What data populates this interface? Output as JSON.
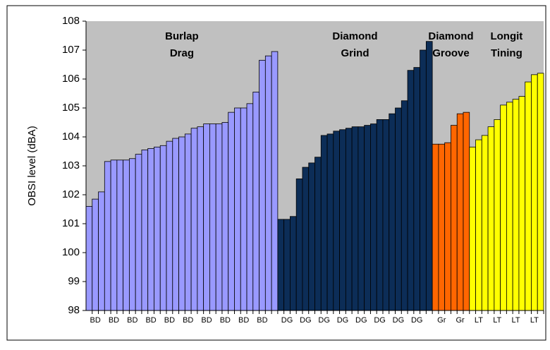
{
  "chart_data": {
    "type": "bar",
    "y_label": "OBSI level (dBA)",
    "ylim": [
      98,
      108
    ],
    "yticks": [
      98,
      99,
      100,
      101,
      102,
      103,
      104,
      105,
      106,
      107,
      108
    ],
    "categories": [
      null,
      "BD",
      null,
      null,
      "BD",
      null,
      null,
      "BD",
      null,
      null,
      "BD",
      null,
      null,
      "BD",
      null,
      null,
      "BD",
      null,
      null,
      "BD",
      null,
      null,
      "BD",
      null,
      null,
      "BD",
      null,
      null,
      "BD",
      null,
      null,
      null,
      "DG",
      null,
      null,
      "DG",
      null,
      null,
      "DG",
      null,
      null,
      "DG",
      null,
      null,
      "DG",
      null,
      null,
      "DG",
      null,
      null,
      "DG",
      null,
      null,
      "DG",
      null,
      null,
      null,
      "Gr",
      null,
      null,
      "Gr",
      null,
      null,
      "LT",
      null,
      null,
      "LT",
      null,
      null,
      "LT",
      null,
      null,
      "LT",
      null
    ],
    "values": [
      101.6,
      101.85,
      102.1,
      103.15,
      103.2,
      103.2,
      103.2,
      103.25,
      103.4,
      103.55,
      103.6,
      103.65,
      103.7,
      103.85,
      103.95,
      104.0,
      104.1,
      104.3,
      104.35,
      104.45,
      104.45,
      104.45,
      104.5,
      104.85,
      105.0,
      105.0,
      105.15,
      105.55,
      106.65,
      106.8,
      106.95,
      101.15,
      101.15,
      101.25,
      102.55,
      102.95,
      103.1,
      103.3,
      104.05,
      104.1,
      104.2,
      104.25,
      104.3,
      104.35,
      104.35,
      104.4,
      104.45,
      104.6,
      104.6,
      104.8,
      105.0,
      105.25,
      106.3,
      106.4,
      107.0,
      107.3,
      103.75,
      103.75,
      103.8,
      104.4,
      104.8,
      104.85,
      103.65,
      103.9,
      104.05,
      104.35,
      104.6,
      105.1,
      105.2,
      105.3,
      105.4,
      105.9,
      106.15,
      106.2
    ],
    "groups": [
      {
        "label": [
          "Burlap",
          "Drag"
        ],
        "color": "#9999ff",
        "count": 31
      },
      {
        "label": [
          "Diamond",
          "Grind"
        ],
        "color": "#0c2d57",
        "count": 25
      },
      {
        "label": [
          "Diamond",
          "Groove"
        ],
        "color": "#ff6600",
        "count": 6
      },
      {
        "label": [
          "Longit",
          "Tining"
        ],
        "color": "#ffff00",
        "count": 12
      }
    ],
    "background": "#c0c0c0"
  }
}
